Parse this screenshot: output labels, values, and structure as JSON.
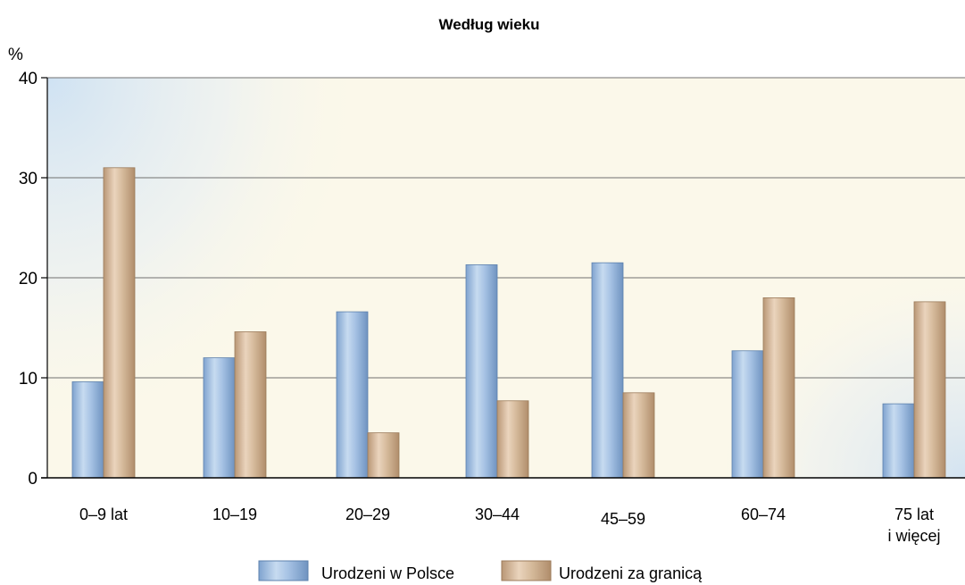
{
  "chart_data": {
    "type": "bar",
    "title": "Według wieku",
    "ylabel": "%",
    "xlabel": "",
    "ylim": [
      0,
      40
    ],
    "yticks": [
      0,
      10,
      20,
      30,
      40
    ],
    "grid": true,
    "legend_position": "bottom",
    "categories": [
      [
        "0–9 lat"
      ],
      [
        "10–19"
      ],
      [
        "20–29"
      ],
      [
        "30–44"
      ],
      [
        "45–59"
      ],
      [
        "60–74"
      ],
      [
        "75 lat",
        "i więcej"
      ]
    ],
    "series": [
      {
        "name": "Urodzeni w Polsce",
        "color": "#a9c6e6",
        "values": [
          9.6,
          12.0,
          16.6,
          21.3,
          21.5,
          12.7,
          7.4
        ]
      },
      {
        "name": "Urodzeni za granicą",
        "color": "#d2b596",
        "values": [
          31.0,
          14.6,
          4.5,
          7.7,
          8.5,
          18.0,
          17.6
        ]
      }
    ]
  }
}
